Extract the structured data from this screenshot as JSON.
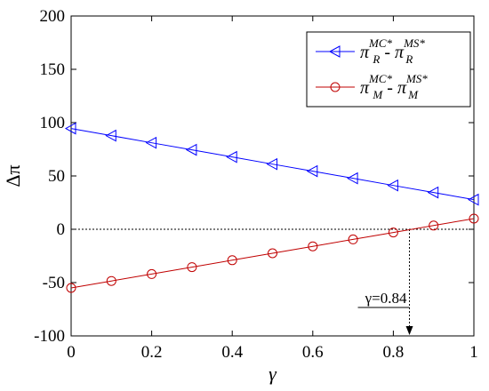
{
  "chart_data": {
    "type": "line",
    "x": [
      0,
      0.1,
      0.2,
      0.3,
      0.4,
      0.5,
      0.6,
      0.7,
      0.8,
      0.9,
      1.0
    ],
    "xlim": [
      0,
      1
    ],
    "ylim": [
      -100,
      200
    ],
    "xticks": [
      0,
      0.2,
      0.4,
      0.6,
      0.8,
      1
    ],
    "xtick_labels": [
      "0",
      "0.2",
      "0.4",
      "0.6",
      "0.8",
      "1"
    ],
    "yticks": [
      -100,
      -50,
      0,
      50,
      100,
      150,
      200
    ],
    "ytick_labels": [
      "-100",
      "-50",
      "0",
      "50",
      "100",
      "150",
      "200"
    ],
    "xlabel": "γ",
    "ylabel": "Δπ",
    "grid": false,
    "legend_position": "top-right",
    "series": [
      {
        "sym": "π",
        "sup1": "MC*",
        "sub1": "R",
        "sep": " - ",
        "sup2": "MS*",
        "sub2": "R",
        "color": "#0000ff",
        "marker": "triangle-left",
        "values": [
          94.5,
          87.8,
          81.1,
          74.5,
          67.8,
          61.1,
          54.5,
          47.8,
          41.1,
          34.5,
          27.8
        ]
      },
      {
        "sym": "π",
        "sup1": "MC*",
        "sub1": "M",
        "sep": " - ",
        "sup2": "MS*",
        "sub2": "M",
        "color": "#c00000",
        "marker": "circle",
        "values": [
          -55,
          -48.5,
          -42,
          -35.5,
          -29,
          -22.5,
          -16,
          -9.5,
          -3,
          3.5,
          10
        ]
      }
    ],
    "annotations": [
      {
        "text": "γ=0.84",
        "x": 0.84,
        "y": 0
      }
    ]
  }
}
